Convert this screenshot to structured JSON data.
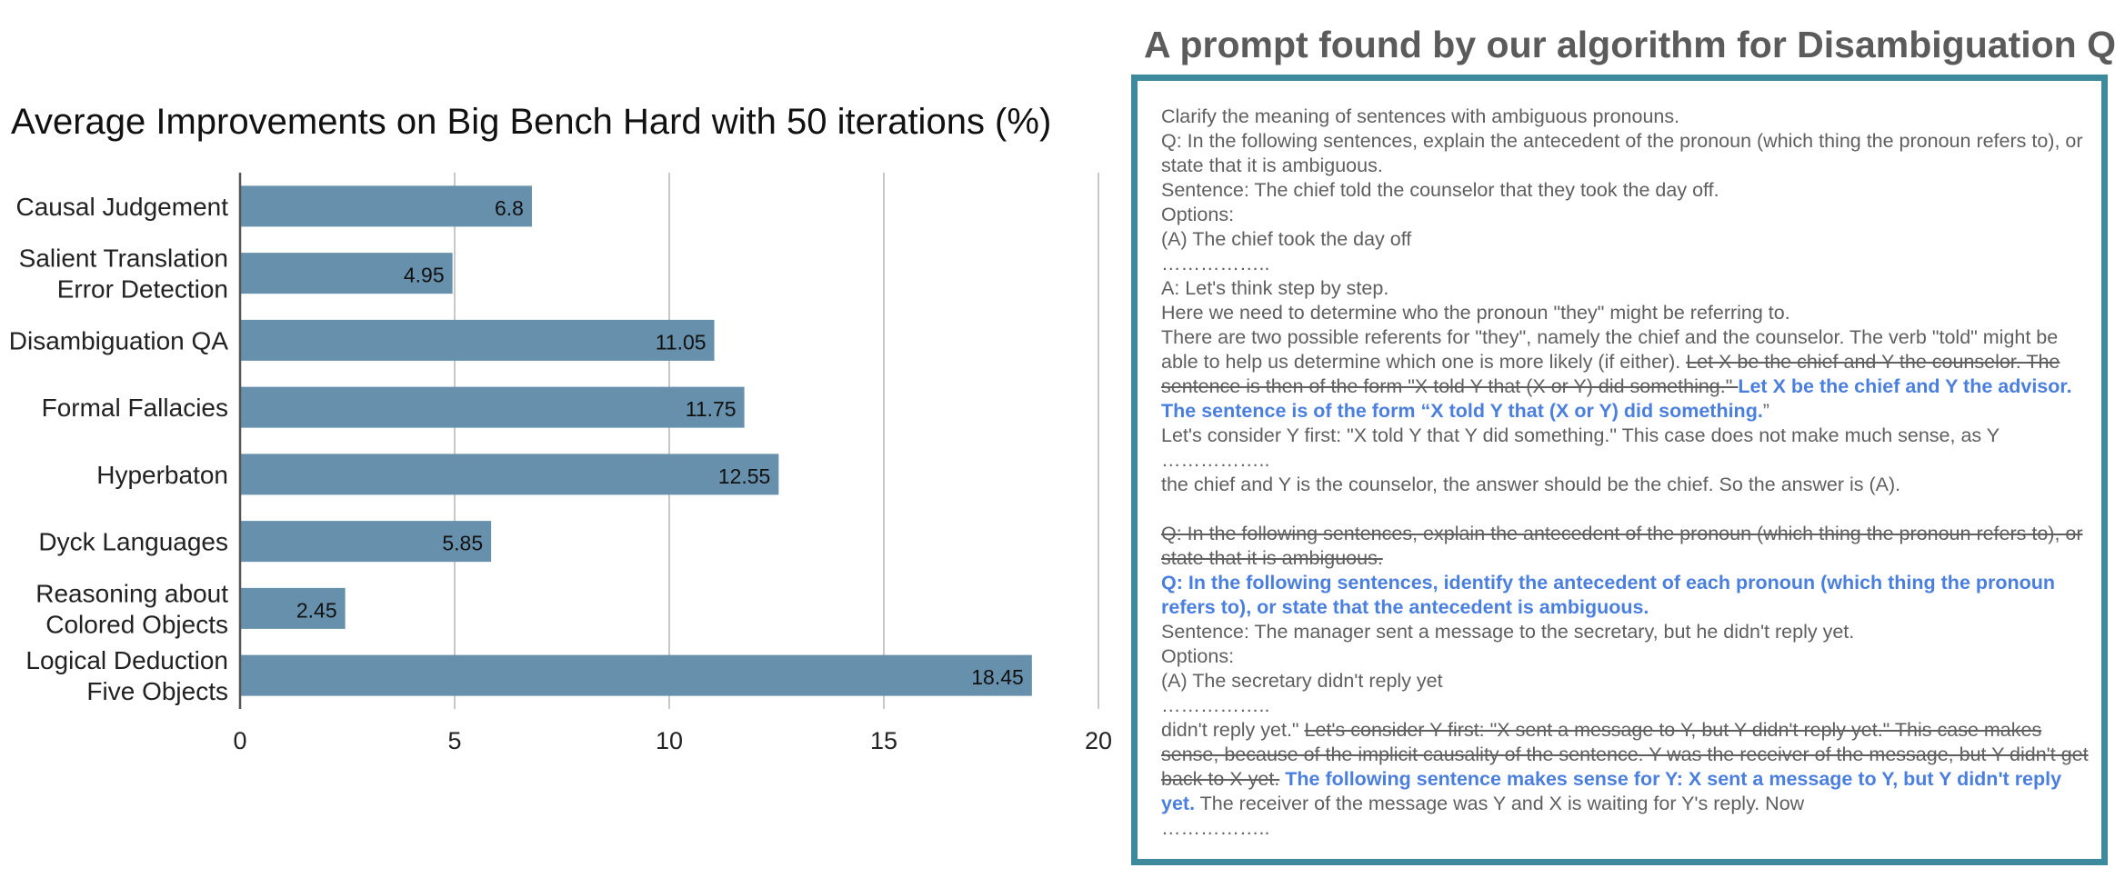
{
  "chart_data": {
    "type": "bar",
    "orientation": "horizontal",
    "title": "Average Improvements on Big Bench Hard with 50 iterations (%)",
    "categories": [
      [
        "Causal Judgement"
      ],
      [
        "Salient Translation",
        "Error Detection"
      ],
      [
        "Disambiguation QA"
      ],
      [
        "Formal Fallacies"
      ],
      [
        "Hyperbaton"
      ],
      [
        "Dyck Languages"
      ],
      [
        "Reasoning about",
        "Colored Objects"
      ],
      [
        "Logical Deduction",
        "Five Objects"
      ]
    ],
    "values": [
      6.8,
      4.95,
      11.05,
      11.75,
      12.55,
      5.85,
      2.45,
      18.45
    ],
    "value_labels": [
      "6.8",
      "4.95",
      "11.05",
      "11.75",
      "12.55",
      "5.85",
      "2.45",
      "18.45"
    ],
    "xlim": [
      0,
      20
    ],
    "xticks": [
      0,
      5,
      10,
      15,
      20
    ],
    "xtick_labels": [
      "0",
      "5",
      "10",
      "15",
      "20"
    ],
    "grid": "vertical",
    "bar_color": "#6690ab",
    "grid_color": "#c8c8c8"
  },
  "panel": {
    "title": "A prompt found by our algorithm for Disambiguation QA",
    "border_color": "#3d8a9c",
    "text_color": "#5f5f5f",
    "highlight_color": "#4a7fe0",
    "l1": "Clarify the meaning of sentences with ambiguous pronouns.",
    "l2": "Q: In the following sentences, explain the antecedent of the pronoun (which thing the pronoun refers to), or state that it is ambiguous.",
    "l3": "Sentence: The chief told the counselor that they took the day off.",
    "l4": "Options:",
    "l5": "(A) The chief took the day off",
    "ellipsis": "……………..",
    "l6": "A: Let's think step by step.",
    "l7": "Here we need to determine who the pronoun \"they\" might be referring to.",
    "l8a": "There are two possible referents for \"they\", namely the chief and the counselor. The verb \"told\" might be able to help us determine which one is more likely (if either). ",
    "l8b": "Let X be the chief and Y the counselor. The sentence is then of the form \"X told Y that (X or Y) did something.\" ",
    "l8c": "Let X be the chief and Y the advisor. The sentence is of the form “X told Y that (X or Y) did something.",
    "l8d": "”",
    "l9": "Let's consider Y first: \"X told Y that Y did something.\" This case does not make much sense, as Y",
    "l10": "the chief and Y is the counselor, the answer should be the chief. So the answer is (A).",
    "l11": "Q: In the following sentences, explain the antecedent of the pronoun (which thing the pronoun refers to), or state that it is ambiguous.",
    "l12": "Q: In the following sentences, identify the antecedent of each pronoun (which thing the pronoun refers to), or state that the antecedent is ambiguous.",
    "l13": "Sentence: The manager sent a message to the secretary, but he didn't reply yet.",
    "l14": "Options:",
    "l15": "(A) The secretary didn't reply yet",
    "l16a": "didn't reply yet.\" ",
    "l16b": "Let's consider Y first: \"X sent a message to Y, but Y didn't reply yet.\" This case makes sense, because of the implicit causality of the sentence. Y was the receiver of the message, but Y didn't get back to X yet.",
    "l16c": " ",
    "l16d": "The following sentence makes sense for Y:    X sent a message to Y, but Y didn't reply yet.",
    "l16e": "    The receiver of the message was Y and X is waiting for Y's reply. Now"
  }
}
